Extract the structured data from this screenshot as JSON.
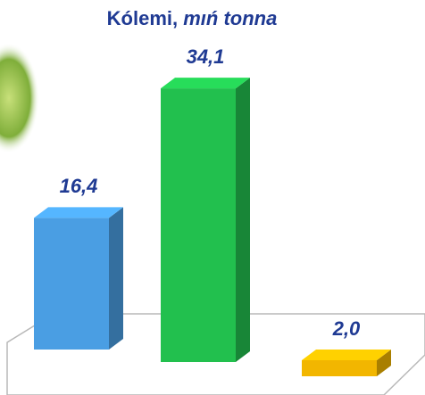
{
  "chart_data": {
    "type": "bar3d",
    "title": "Kólemi,",
    "unit": "mıń tonna",
    "values": [
      16.4,
      34.1,
      2.0
    ],
    "value_labels": [
      "16,4",
      "34,1",
      "2,0"
    ],
    "colors": [
      "#4a9ee3",
      "#22c04e",
      "#f2b600"
    ]
  }
}
